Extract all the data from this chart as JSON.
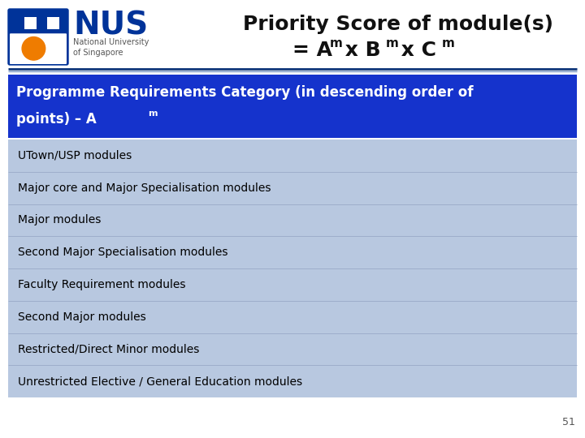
{
  "title_line1": "Priority Score of module(s)",
  "title_line2_prefix": "= A",
  "title_line2_mid1": " x B",
  "title_line2_mid2": " x C",
  "superscript": "m",
  "header_text_line1": "Programme Requirements Category (in descending order of",
  "header_text_line2": "points) – A",
  "header_bg": "#1533cc",
  "header_text_color": "#ffffff",
  "table_bg": "#b8c8e0",
  "rows": [
    "UTown/USP modules",
    "Major core and Major Specialisation modules",
    "Major modules",
    "Second Major Specialisation modules",
    "Faculty Requirement modules",
    "Second Major modules",
    "Restricted/Direct Minor modules",
    "Unrestricted Elective / General Education modules"
  ],
  "row_text_color": "#000000",
  "divider_color1": "#1a4080",
  "divider_color2": "#6688bb",
  "bg_color": "#ffffff",
  "page_number": "51",
  "nus_blue": "#003399",
  "nus_orange": "#ef7c00",
  "logo_shield_color": "#003399",
  "title_fontsize": 18,
  "title2_fontsize": 18,
  "header_fontsize": 12,
  "row_fontsize": 10,
  "row_sep_color": "#99aac8"
}
